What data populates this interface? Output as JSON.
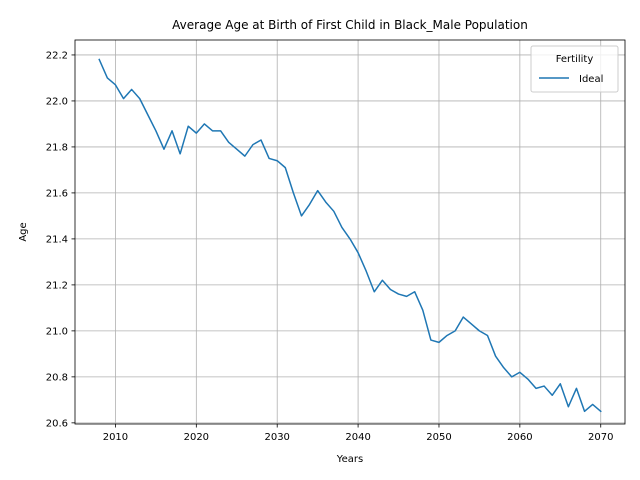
{
  "chart_data": {
    "type": "line",
    "title": "Average Age at Birth of First Child in Black_Male Population",
    "xlabel": "Years",
    "ylabel": "Age",
    "xlim": [
      2005,
      2073
    ],
    "ylim": [
      20.595,
      22.265
    ],
    "x_ticks": [
      2010,
      2020,
      2030,
      2040,
      2050,
      2060,
      2070
    ],
    "y_ticks": [
      20.6,
      20.8,
      21.0,
      21.2,
      21.4,
      21.6,
      21.8,
      22.0,
      22.2
    ],
    "x_tick_labels": [
      "2010",
      "2020",
      "2030",
      "2040",
      "2050",
      "2060",
      "2070"
    ],
    "y_tick_labels": [
      "20.6",
      "20.8",
      "21.0",
      "21.2",
      "21.4",
      "21.6",
      "21.8",
      "22.0",
      "22.2"
    ],
    "grid": true,
    "legend": {
      "title": "Fertility",
      "position": "top-right"
    },
    "series": [
      {
        "name": "Ideal",
        "color": "#1f77b4",
        "x": [
          2008,
          2009,
          2010,
          2011,
          2012,
          2013,
          2014,
          2015,
          2016,
          2017,
          2018,
          2019,
          2020,
          2021,
          2022,
          2023,
          2024,
          2025,
          2026,
          2027,
          2028,
          2029,
          2030,
          2031,
          2032,
          2033,
          2034,
          2035,
          2036,
          2037,
          2038,
          2039,
          2040,
          2041,
          2042,
          2043,
          2044,
          2045,
          2046,
          2047,
          2048,
          2049,
          2050,
          2051,
          2052,
          2053,
          2054,
          2055,
          2056,
          2057,
          2058,
          2059,
          2060,
          2061,
          2062,
          2063,
          2064,
          2065,
          2066,
          2067,
          2068,
          2069,
          2070
        ],
        "values": [
          22.18,
          22.1,
          22.07,
          22.01,
          22.05,
          22.01,
          21.94,
          21.87,
          21.79,
          21.87,
          21.77,
          21.89,
          21.86,
          21.9,
          21.87,
          21.87,
          21.82,
          21.79,
          21.76,
          21.81,
          21.83,
          21.75,
          21.74,
          21.71,
          21.6,
          21.5,
          21.55,
          21.61,
          21.56,
          21.52,
          21.45,
          21.4,
          21.34,
          21.26,
          21.17,
          21.22,
          21.18,
          21.16,
          21.15,
          21.17,
          21.09,
          20.96,
          20.95,
          20.98,
          21.0,
          21.06,
          21.03,
          21.0,
          20.98,
          20.89,
          20.84,
          20.8,
          20.82,
          20.79,
          20.75,
          20.76,
          20.72,
          20.77,
          20.67,
          20.75,
          20.65,
          20.68,
          20.65
        ]
      }
    ]
  }
}
